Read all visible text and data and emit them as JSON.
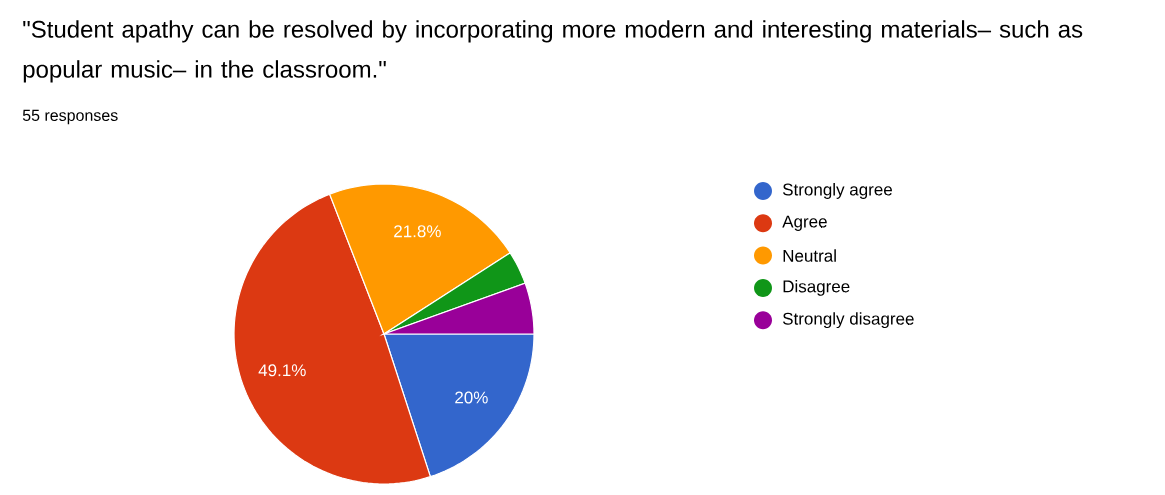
{
  "chart_data": {
    "type": "pie",
    "title": "\"Student apathy can be resolved by incorporating more modern and interesting materials– such as popular music– in the classroom.\"",
    "subtitle": "55 responses",
    "categories": [
      "Strongly agree",
      "Agree",
      "Neutral",
      "Disagree",
      "Strongly disagree"
    ],
    "values": [
      20,
      49.1,
      21.8,
      3.6,
      5.5
    ],
    "colors": [
      "#3366cc",
      "#dc3912",
      "#ff9900",
      "#109618",
      "#990099"
    ],
    "value_labels": [
      "20%",
      "49.1%",
      "21.8%",
      null,
      null
    ],
    "legend": "right"
  }
}
